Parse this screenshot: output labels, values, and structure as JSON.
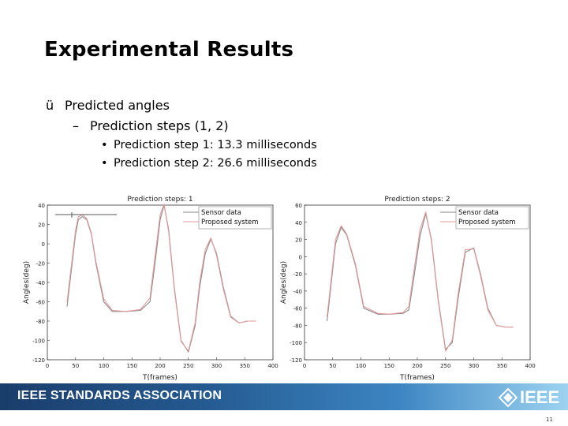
{
  "slide": {
    "title": "Experimental Results",
    "bullet1": {
      "icon": "checkmark-icon",
      "mark": "ü",
      "text": "Predicted angles"
    },
    "bullet2": {
      "mark": "–",
      "text": "Prediction steps (1, 2)"
    },
    "bullets3": [
      {
        "mark": "•",
        "text": "Prediction step 1: 13.3 milliseconds"
      },
      {
        "mark": "•",
        "text": "Prediction step 2: 26.6 milliseconds"
      }
    ]
  },
  "chart_data": [
    {
      "type": "line",
      "title": "Prediction steps: 1",
      "xlabel": "T(frames)",
      "ylabel": "Angles(deg)",
      "xlim": [
        0,
        400
      ],
      "ylim": [
        -120,
        40
      ],
      "xticks": [
        "0",
        "50",
        "100",
        "150",
        "200",
        "250",
        "300",
        "350",
        "400"
      ],
      "yticks": [
        "40",
        "20",
        "0",
        "-20",
        "-40",
        "-60",
        "-80",
        "-100",
        "-120"
      ],
      "legend": [
        "Sensor data",
        "Proposed system"
      ],
      "colors": [
        "#888888",
        "#e09a9a"
      ],
      "x": [
        35,
        50,
        55,
        62,
        70,
        78,
        86,
        100,
        115,
        140,
        165,
        182,
        192,
        200,
        207,
        215,
        225,
        237,
        250,
        262,
        270,
        280,
        290,
        300,
        312,
        325,
        340,
        355,
        370
      ],
      "series": [
        {
          "name": "Sensor data",
          "values": [
            -65,
            10,
            25,
            28,
            25,
            10,
            -20,
            -60,
            -70,
            -70,
            -69,
            -60,
            -15,
            25,
            40,
            15,
            -45,
            -100,
            -112,
            -85,
            -45,
            -10,
            5,
            -10,
            -45,
            -75,
            -82,
            -80,
            -80
          ]
        },
        {
          "name": "Proposed system",
          "values": [
            -60,
            14,
            28,
            30,
            26,
            11,
            -18,
            -57,
            -69,
            -70,
            -68,
            -56,
            -8,
            30,
            41,
            13,
            -47,
            -101,
            -111,
            -82,
            -40,
            -6,
            6,
            -12,
            -47,
            -76,
            -82,
            -80,
            -80
          ]
        }
      ]
    },
    {
      "type": "line",
      "title": "Prediction steps: 2",
      "xlabel": "T(frames)",
      "ylabel": "Angles(deg)",
      "xlim": [
        0,
        400
      ],
      "ylim": [
        -120,
        60
      ],
      "xticks": [
        "0",
        "50",
        "100",
        "150",
        "200",
        "250",
        "300",
        "350",
        "400"
      ],
      "yticks": [
        "60",
        "40",
        "20",
        "0",
        "-20",
        "-40",
        "-60",
        "-80",
        "-100",
        "-120"
      ],
      "legend": [
        "Sensor data",
        "Proposed system"
      ],
      "colors": [
        "#888888",
        "#e09a9a"
      ],
      "x": [
        40,
        55,
        65,
        75,
        90,
        105,
        130,
        150,
        175,
        185,
        195,
        205,
        215,
        225,
        237,
        250,
        262,
        272,
        285,
        300,
        312,
        325,
        340,
        355,
        370
      ],
      "series": [
        {
          "name": "Sensor data",
          "values": [
            -75,
            15,
            34,
            25,
            -10,
            -60,
            -67,
            -67,
            -66,
            -62,
            -20,
            25,
            50,
            20,
            -50,
            -108,
            -100,
            -50,
            5,
            10,
            -20,
            -60,
            -80,
            -82,
            -82
          ]
        },
        {
          "name": "Proposed system",
          "values": [
            -70,
            20,
            36,
            26,
            -8,
            -58,
            -66,
            -67,
            -65,
            -58,
            -12,
            32,
            52,
            18,
            -52,
            -110,
            -97,
            -45,
            8,
            9,
            -22,
            -62,
            -80,
            -82,
            -82
          ]
        }
      ]
    }
  ],
  "footer": {
    "brand": "IEEE STANDARDS ASSOCIATION",
    "logo_text": "IEEE",
    "logo_icon": "ieee-diamond-icon",
    "page": "11"
  }
}
